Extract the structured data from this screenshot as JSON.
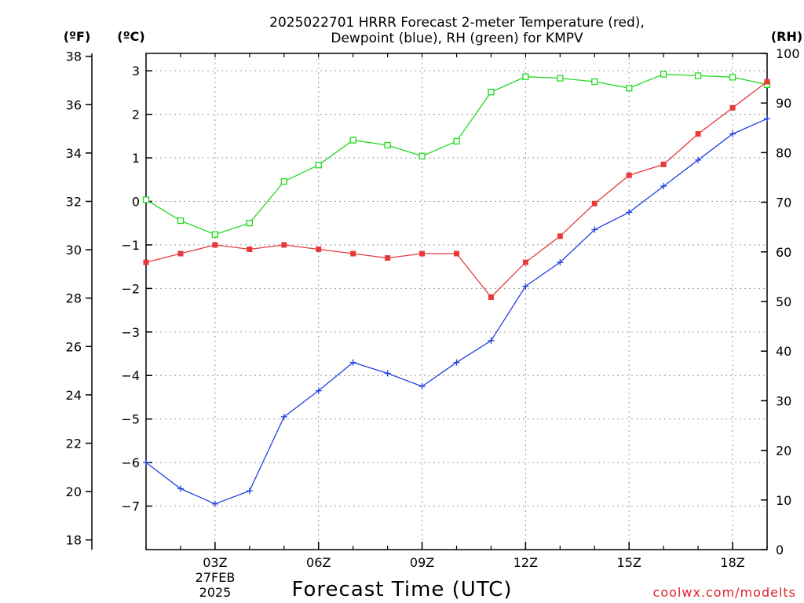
{
  "title_line1": "2025022701 HRRR Forecast 2-meter Temperature (red),",
  "title_line2": "Dewpoint (blue), RH (green) for KMPV",
  "unit_f": "(ºF)",
  "unit_c": "(ºC)",
  "unit_rh": "(RH)",
  "xlabel": "Forecast Time (UTC)",
  "date_label": [
    "27FEB",
    "2025"
  ],
  "credit": "coolwx.com/modelts",
  "colors": {
    "temperature": "#e8383a",
    "dewpoint": "#2440e0",
    "rh": "#22d822",
    "grid": "#9a9a9a"
  },
  "chart_data": {
    "type": "line",
    "x": [
      "01Z",
      "02Z",
      "03Z",
      "04Z",
      "05Z",
      "06Z",
      "07Z",
      "08Z",
      "09Z",
      "10Z",
      "11Z",
      "12Z",
      "13Z",
      "14Z",
      "15Z",
      "16Z",
      "17Z",
      "18Z",
      "19Z"
    ],
    "x_tick_labels": [
      "03Z",
      "06Z",
      "09Z",
      "12Z",
      "15Z",
      "18Z"
    ],
    "y_left_c": {
      "range": [
        -8,
        3.4
      ],
      "ticks": [
        -7,
        -6,
        -5,
        -4,
        -3,
        -2,
        -1,
        0,
        1,
        2,
        3
      ]
    },
    "y_left_f": {
      "range": [
        17.6,
        38.12
      ],
      "ticks": [
        18,
        20,
        22,
        24,
        26,
        28,
        30,
        32,
        34,
        36,
        38
      ]
    },
    "y_right_rh": {
      "range": [
        0,
        100
      ],
      "ticks": [
        0,
        10,
        20,
        30,
        40,
        50,
        60,
        70,
        80,
        90,
        100
      ]
    },
    "grid": true,
    "series": [
      {
        "name": "Temperature",
        "axis": "c",
        "values": [
          -1.4,
          -1.2,
          -1.0,
          -1.1,
          -1.0,
          -1.1,
          -1.2,
          -1.3,
          -1.2,
          -1.2,
          -2.2,
          -1.4,
          -0.8,
          -0.05,
          0.6,
          0.85,
          1.55,
          2.15,
          2.75
        ]
      },
      {
        "name": "Dewpoint",
        "axis": "c",
        "values": [
          -6.0,
          -6.6,
          -6.95,
          -6.65,
          -4.95,
          -4.35,
          -3.7,
          -3.95,
          -4.25,
          -3.7,
          -3.2,
          -1.95,
          -1.4,
          -0.65,
          -0.25,
          0.35,
          0.95,
          1.55,
          1.9
        ]
      },
      {
        "name": "Relative Humidity",
        "axis": "rh",
        "values": [
          70.5,
          66.3,
          63.5,
          65.8,
          74.2,
          77.5,
          82.5,
          81.5,
          79.3,
          82.3,
          92.2,
          95.3,
          95.0,
          94.3,
          93.0,
          95.8,
          95.5,
          95.2,
          93.7
        ]
      }
    ]
  }
}
